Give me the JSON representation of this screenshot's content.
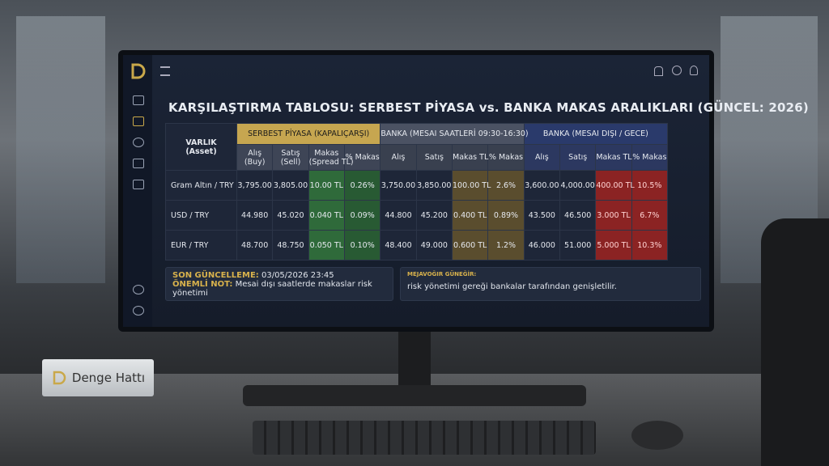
{
  "title": "KARŞILAŞTIRMA TABLOSU: SERBEST PİYASA vs. BANKA MAKAS ARALIKLARI (GÜNCEL: 2026)",
  "table": {
    "corner": [
      "VARLIK",
      "(Asset)"
    ],
    "groups": [
      "SERBEST PİYASA (KAPALIÇARŞI)",
      "BANKA (MESAI SAATLERİ 09:30-16:30)",
      "BANKA (MESAI DIŞI / GECE)"
    ],
    "subheaders": [
      [
        [
          "Alış",
          "(Buy)"
        ],
        [
          "Satış",
          "(Sell)"
        ],
        [
          "Makas",
          "(Spread TL)"
        ],
        [
          "% Makas"
        ]
      ],
      [
        [
          "Alış"
        ],
        [
          "Satış"
        ],
        [
          "Makas TL"
        ],
        [
          "% Makas"
        ]
      ],
      [
        [
          "Alış"
        ],
        [
          "Satış"
        ],
        [
          "Makas TL"
        ],
        [
          "% Makas"
        ]
      ]
    ],
    "rows": [
      [
        "Gram Altın / TRY",
        "3,795.00",
        "3,805.00",
        "10.00 TL",
        "0.26%",
        "3,750.00",
        "3,850.00",
        "100.00 TL",
        "2.6%",
        "3,600.00",
        "4,000.00",
        "400.00 TL",
        "10.5%"
      ],
      [
        "USD / TRY",
        "44.980",
        "45.020",
        "0.040 TL",
        "0.09%",
        "44.800",
        "45.200",
        "0.400 TL",
        "0.89%",
        "43.500",
        "46.500",
        "3.000 TL",
        "6.7%"
      ],
      [
        "EUR / TRY",
        "48.700",
        "48.750",
        "0.050 TL",
        "0.10%",
        "48.400",
        "49.000",
        "0.600 TL",
        "1.2%",
        "46.000",
        "51.000",
        "5.000 TL",
        "10.3%"
      ]
    ]
  },
  "notes": [
    {
      "label": "SON GÜNCELLEME:",
      "text": "03/05/2026 23:45"
    },
    {
      "label": "ÖNEMLİ NOT:",
      "text": "Mesai dışı saatlerde makaslar risk yönetimi"
    },
    {
      "label": "MEJAVOĞIR GÜNEĞİR:",
      "text": "risk yönetimi gereği bankalar tarafından genişletilir."
    }
  ],
  "nameplate": "Denge Hattı"
}
